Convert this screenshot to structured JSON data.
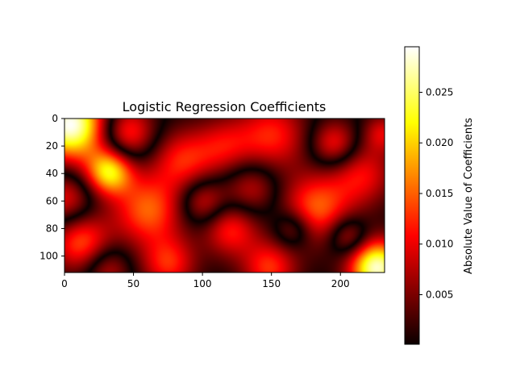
{
  "chart_data": {
    "type": "heatmap",
    "title": "Logistic Regression Coefficients",
    "xlabel": "",
    "ylabel": "",
    "colormap": "hot",
    "x_range": [
      0,
      232
    ],
    "y_range": [
      0,
      112
    ],
    "x_ticks": [
      "0",
      "50",
      "100",
      "150",
      "200"
    ],
    "y_ticks": [
      "0",
      "20",
      "40",
      "60",
      "80",
      "100"
    ],
    "colorbar": {
      "label": "Absolute Value of Coefficients",
      "range": [
        0.0001,
        0.0295
      ],
      "ticks": [
        "0.005",
        "0.010",
        "0.015",
        "0.020",
        "0.025"
      ]
    },
    "bright_spots": [
      {
        "x": 5,
        "y": 5,
        "value": 0.029
      },
      {
        "x": 32,
        "y": 38,
        "value": 0.021
      },
      {
        "x": 60,
        "y": 65,
        "value": 0.014
      },
      {
        "x": 12,
        "y": 88,
        "value": 0.013
      },
      {
        "x": 225,
        "y": 108,
        "value": 0.027
      },
      {
        "x": 182,
        "y": 65,
        "value": 0.014
      },
      {
        "x": 145,
        "y": 105,
        "value": 0.012
      },
      {
        "x": 120,
        "y": 78,
        "value": 0.011
      }
    ]
  }
}
